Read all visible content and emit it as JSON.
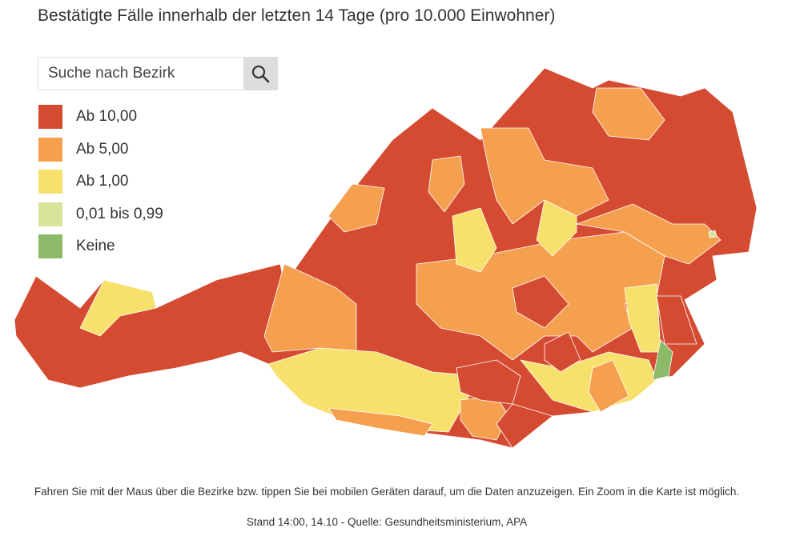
{
  "header": {
    "title": "Bestätigte Fälle innerhalb der letzten 14 Tage (pro 10.000 Einwohner)"
  },
  "search": {
    "placeholder": "Suche nach Bezirk"
  },
  "legend": [
    {
      "label": "Ab 10,00",
      "color": "#d44b32"
    },
    {
      "label": "Ab 5,00",
      "color": "#f5a04e"
    },
    {
      "label": "Ab 1,00",
      "color": "#f8e06c"
    },
    {
      "label": "0,01 bis 0,99",
      "color": "#d9e39c"
    },
    {
      "label": "Keine",
      "color": "#8cba68"
    }
  ],
  "footer": {
    "note": "Fahren Sie mit der Maus über die Bezirke bzw. tippen Sie bei mobilen Geräten darauf, um die Daten anzuzeigen. Ein Zoom in die Karte ist möglich.",
    "source": "Stand 14:00, 14.10 - Quelle: Gesundheitsministerium, APA"
  }
}
